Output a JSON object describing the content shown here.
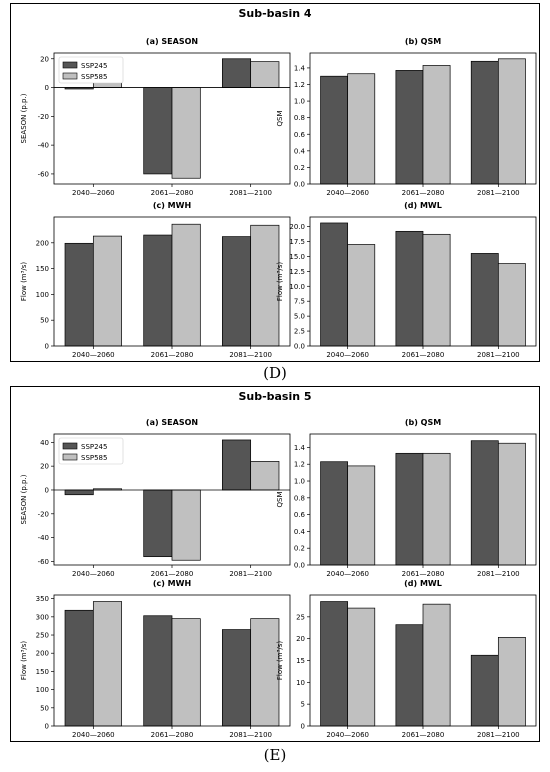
{
  "blocks": [
    {
      "title": "Sub-basin 4",
      "label": "(D)",
      "charts": [
        {
          "type": "bar",
          "title": "(a) SEASON",
          "ylabel": "SEASON (p.p.)",
          "categories": [
            "2040—2060",
            "2061—2080",
            "2081—2100"
          ],
          "ylim": [
            -67,
            24
          ],
          "yticks": [
            -60,
            -40,
            -20,
            0,
            20
          ],
          "zero_line": true,
          "legend": "top-left",
          "series": [
            {
              "name": "SSP245",
              "values": [
                -1,
                -60,
                20
              ]
            },
            {
              "name": "SSP585",
              "values": [
                5,
                -63,
                18
              ]
            }
          ]
        },
        {
          "type": "bar",
          "title": "(b) QSM",
          "ylabel": "QSM",
          "categories": [
            "2040—2060",
            "2061—2080",
            "2081—2100"
          ],
          "ylim": [
            0,
            1.58
          ],
          "yticks": [
            0.0,
            0.2,
            0.4,
            0.6,
            0.8,
            1.0,
            1.2,
            1.4
          ],
          "decimals": 1,
          "series": [
            {
              "values": [
                1.3,
                1.37,
                1.48
              ]
            },
            {
              "values": [
                1.33,
                1.43,
                1.51
              ]
            }
          ]
        },
        {
          "type": "bar",
          "title": "(c) MWH",
          "ylabel": "Flow (m³/s)",
          "categories": [
            "2040—2060",
            "2061—2080",
            "2081—2100"
          ],
          "ylim": [
            0,
            250
          ],
          "yticks": [
            0,
            50,
            100,
            150,
            200
          ],
          "series": [
            {
              "values": [
                199,
                215,
                212
              ]
            },
            {
              "values": [
                213,
                236,
                234
              ]
            }
          ]
        },
        {
          "type": "bar",
          "title": "(d) MWL",
          "ylabel": "Flow (m³/s)",
          "categories": [
            "2040—2060",
            "2061—2080",
            "2081—2100"
          ],
          "ylim": [
            0,
            21.6
          ],
          "yticks": [
            0.0,
            2.5,
            5.0,
            7.5,
            10.0,
            12.5,
            15.0,
            17.5,
            20.0
          ],
          "decimals": 1,
          "series": [
            {
              "values": [
                20.6,
                19.2,
                15.5
              ]
            },
            {
              "values": [
                17.0,
                18.7,
                13.8
              ]
            }
          ]
        }
      ]
    },
    {
      "title": "Sub-basin 5",
      "label": "(E)",
      "charts": [
        {
          "type": "bar",
          "title": "(a) SEASON",
          "ylabel": "SEASON (p.p.)",
          "categories": [
            "2040—2060",
            "2061—2080",
            "2081—2100"
          ],
          "ylim": [
            -63,
            47
          ],
          "yticks": [
            -60,
            -40,
            -20,
            0,
            20,
            40
          ],
          "zero_line": true,
          "legend": "top-left",
          "series": [
            {
              "name": "SSP245",
              "values": [
                -4,
                -56,
                42
              ]
            },
            {
              "name": "SSP585",
              "values": [
                1,
                -59,
                24
              ]
            }
          ]
        },
        {
          "type": "bar",
          "title": "(b) QSM",
          "ylabel": "QSM",
          "categories": [
            "2040—2060",
            "2061—2080",
            "2081—2100"
          ],
          "ylim": [
            0,
            1.56
          ],
          "yticks": [
            0.0,
            0.2,
            0.4,
            0.6,
            0.8,
            1.0,
            1.2,
            1.4
          ],
          "decimals": 1,
          "series": [
            {
              "values": [
                1.23,
                1.33,
                1.48
              ]
            },
            {
              "values": [
                1.18,
                1.33,
                1.45
              ]
            }
          ]
        },
        {
          "type": "bar",
          "title": "(c) MWH",
          "ylabel": "Flow (m³/s)",
          "categories": [
            "2040—2060",
            "2061—2080",
            "2081—2100"
          ],
          "ylim": [
            0,
            360
          ],
          "yticks": [
            0,
            50,
            100,
            150,
            200,
            250,
            300,
            350
          ],
          "series": [
            {
              "values": [
                318,
                303,
                265
              ]
            },
            {
              "values": [
                342,
                295,
                295
              ]
            }
          ]
        },
        {
          "type": "bar",
          "title": "(d) MWL",
          "ylabel": "Flow (m³/s)",
          "categories": [
            "2040—2060",
            "2061—2080",
            "2081—2100"
          ],
          "ylim": [
            0,
            30
          ],
          "yticks": [
            0,
            5,
            10,
            15,
            20,
            25
          ],
          "series": [
            {
              "values": [
                28.5,
                23.2,
                16.2
              ]
            },
            {
              "values": [
                27.0,
                27.9,
                20.3
              ]
            }
          ]
        }
      ]
    }
  ],
  "colors": {
    "SSP245": "#555555",
    "SSP585": "#c0c0c0",
    "edge": "#000000"
  }
}
